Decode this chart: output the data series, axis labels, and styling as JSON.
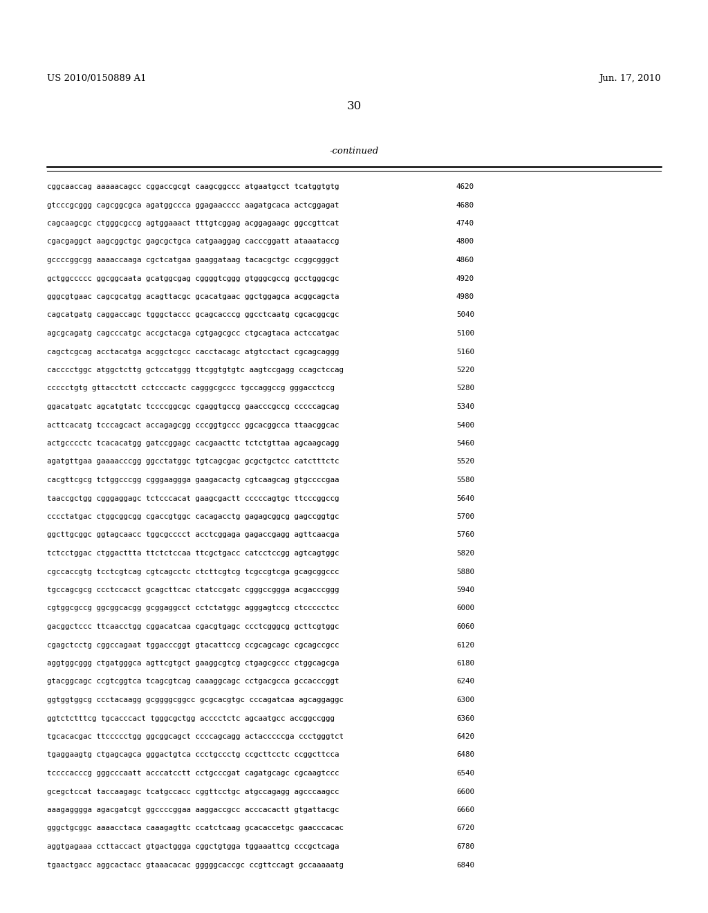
{
  "header_left": "US 2010/0150889 A1",
  "header_right": "Jun. 17, 2010",
  "page_number": "30",
  "continued_label": "-continued",
  "background_color": "#ffffff",
  "text_color": "#000000",
  "font_size_header": 9.5,
  "font_size_page": 12,
  "font_size_continued": 9.5,
  "font_size_sequence": 7.8,
  "sequence_lines": [
    [
      "cggcaaccag aaaaacagcc cggaccgcgt caagcggccc atgaatgcct tcatggtgtg",
      "4620"
    ],
    [
      "gtcccgcggg cagcggcgca agatggccca ggagaacccc aagatgcaca actcggagat",
      "4680"
    ],
    [
      "cagcaagcgc ctgggcgccg agtggaaact tttgtcggag acggagaagc ggccgttcat",
      "4740"
    ],
    [
      "cgacgaggct aagcggctgc gagcgctgca catgaaggag cacccggatt ataaataccg",
      "4800"
    ],
    [
      "gccccggcgg aaaaccaaga cgctcatgaa gaaggataag tacacgctgc ccggcgggct",
      "4860"
    ],
    [
      "gctggccccc ggcggcaata gcatggcgag cggggtcggg gtgggcgccg gcctgggcgc",
      "4920"
    ],
    [
      "gggcgtgaac cagcgcatgg acagttacgc gcacatgaac ggctggagca acggcagcta",
      "4980"
    ],
    [
      "cagcatgatg caggaccagc tgggctaccc gcagcacccg ggcctcaatg cgcacggcgc",
      "5040"
    ],
    [
      "agcgcagatg cagcccatgc accgctacga cgtgagcgcc ctgcagtaca actccatgac",
      "5100"
    ],
    [
      "cagctcgcag acctacatga acggctcgcc cacctacagc atgtcctact cgcagcaggg",
      "5160"
    ],
    [
      "cacccctggc atggctcttg gctccatggg ttcggtgtgtc aagtccgagg ccagctccag",
      "5220"
    ],
    [
      "ccccctgtg gttacctctt cctcccactc cagggcgccc tgccaggccg gggacctccg",
      "5280"
    ],
    [
      "ggacatgatc agcatgtatc tccccggcgc cgaggtgccg gaacccgccg cccccagcag",
      "5340"
    ],
    [
      "acttcacatg tcccagcact accagagcgg cccggtgccc ggcacggcca ttaacggcac",
      "5400"
    ],
    [
      "actgcccctc tcacacatgg gatccggagc cacgaacttc tctctgttaa agcaagcagg",
      "5460"
    ],
    [
      "agatgttgaa gaaaacccgg ggcctatggc tgtcagcgac gcgctgctcc catctttctc",
      "5520"
    ],
    [
      "cacgttcgcg tctggcccgg cgggaaggga gaagacactg cgtcaagcag gtgccccgaa",
      "5580"
    ],
    [
      "taaccgctgg cgggaggagc tctcccacat gaagcgactt cccccagtgc ttcccggccg",
      "5640"
    ],
    [
      "cccctatgac ctggcggcgg cgaccgtggc cacagacctg gagagcggcg gagccggtgc",
      "5700"
    ],
    [
      "ggcttgcggc ggtagcaacc tggcgcccct acctcggaga gagaccgagg agttcaacga",
      "5760"
    ],
    [
      "tctcctggac ctggacttta ttctctccaa ttcgctgacc catcctccgg agtcagtggc",
      "5820"
    ],
    [
      "cgccaccgtg tcctcgtcag cgtcagcctc ctcttcgtcg tcgccgtcga gcagcggccc",
      "5880"
    ],
    [
      "tgccagcgcg ccctccacct gcagcttcac ctatccgatc cgggccggga acgacccggg",
      "5940"
    ],
    [
      "cgtggcgccg ggcggcacgg gcggaggcct cctctatggc agggagtccg ctccccctcc",
      "6000"
    ],
    [
      "gacggctccc ttcaacctgg cggacatcaa cgacgtgagc ccctcgggcg gcttcgtggc",
      "6060"
    ],
    [
      "cgagctcctg cggccagaat tggacccggt gtacattccg ccgcagcagc cgcagccgcc",
      "6120"
    ],
    [
      "aggtggcggg ctgatgggca agttcgtgct gaaggcgtcg ctgagcgccc ctggcagcga",
      "6180"
    ],
    [
      "gtacggcagc ccgtcggtca tcagcgtcag caaaggcagc cctgacgcca gccacccggt",
      "6240"
    ],
    [
      "ggtggtggcg ccctacaagg gcggggcggcc gcgcacgtgc cccagatcaa agcaggaggc",
      "6300"
    ],
    [
      "ggtctctttcg tgcacccact tgggcgctgg acccctctc agcaatgcc accggccggg",
      "6360"
    ],
    [
      "tgcacacgac ttccccctgg ggcggcagct ccccagcagg actacccccga ccctgggtct",
      "6420"
    ],
    [
      "tgaggaagtg ctgagcagca gggactgtca ccctgccctg ccgcttcctc ccggcttcca",
      "6480"
    ],
    [
      "tccccacccg gggcccaatt acccatcctt cctgcccgat cagatgcagc cgcaagtccc",
      "6540"
    ],
    [
      "gcegctccat taccaagagc tcatgccacc cggttcctgc atgccagagg agcccaagcc",
      "6600"
    ],
    [
      "aaagagggga agacgatcgt ggccccggaa aaggaccgcc acccacactt gtgattacgc",
      "6660"
    ],
    [
      "gggctgcggc aaaacctaca caaagagttc ccatctcaag gcacaccetgc gaacccacac",
      "6720"
    ],
    [
      "aggtgagaaa ccttaccact gtgactggga cggctgtgga tggaaattcg cccgctcaga",
      "6780"
    ],
    [
      "tgaactgacc aggcactacc gtaaacacac gggggcaccgc ccgttccagt gccaaaaatg",
      "6840"
    ]
  ]
}
